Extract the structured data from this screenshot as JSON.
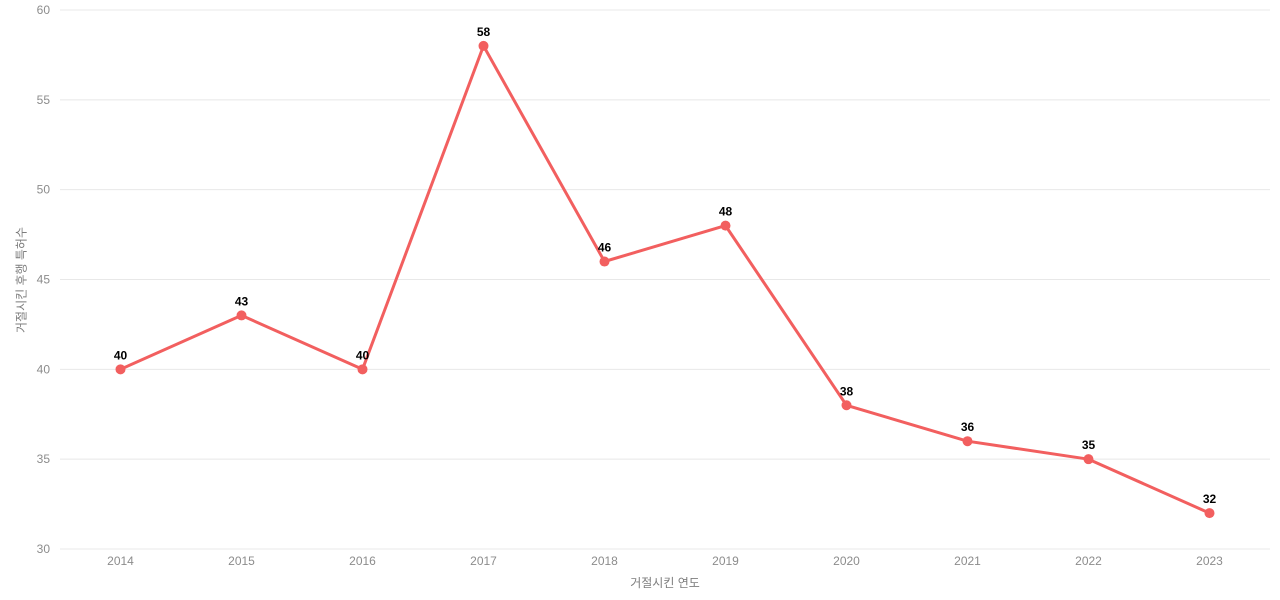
{
  "chart_data": {
    "type": "line",
    "title": "",
    "categories": [
      "2014",
      "2015",
      "2016",
      "2017",
      "2018",
      "2019",
      "2020",
      "2021",
      "2022",
      "2023"
    ],
    "series": [
      {
        "name": "거절시킨 후행 특허수",
        "values": [
          40,
          43,
          40,
          58,
          46,
          48,
          38,
          36,
          35,
          32
        ]
      }
    ],
    "xlabel": "거절시킨 연도",
    "ylabel": "거절시킨 후행 특허수",
    "ylim": [
      30,
      60
    ],
    "y_ticks": [
      30,
      35,
      40,
      45,
      50,
      55,
      60
    ],
    "grid": "horizontal",
    "legend": "none",
    "data_labels_visible": true,
    "colors": {
      "line": "#f25f5f",
      "marker": "#f25f5f",
      "grid": "#e8e8e8",
      "tick_text": "#8c8c8c",
      "axis_title_text": "#7d7d7d",
      "data_label": "#000000",
      "background": "#ffffff"
    }
  }
}
